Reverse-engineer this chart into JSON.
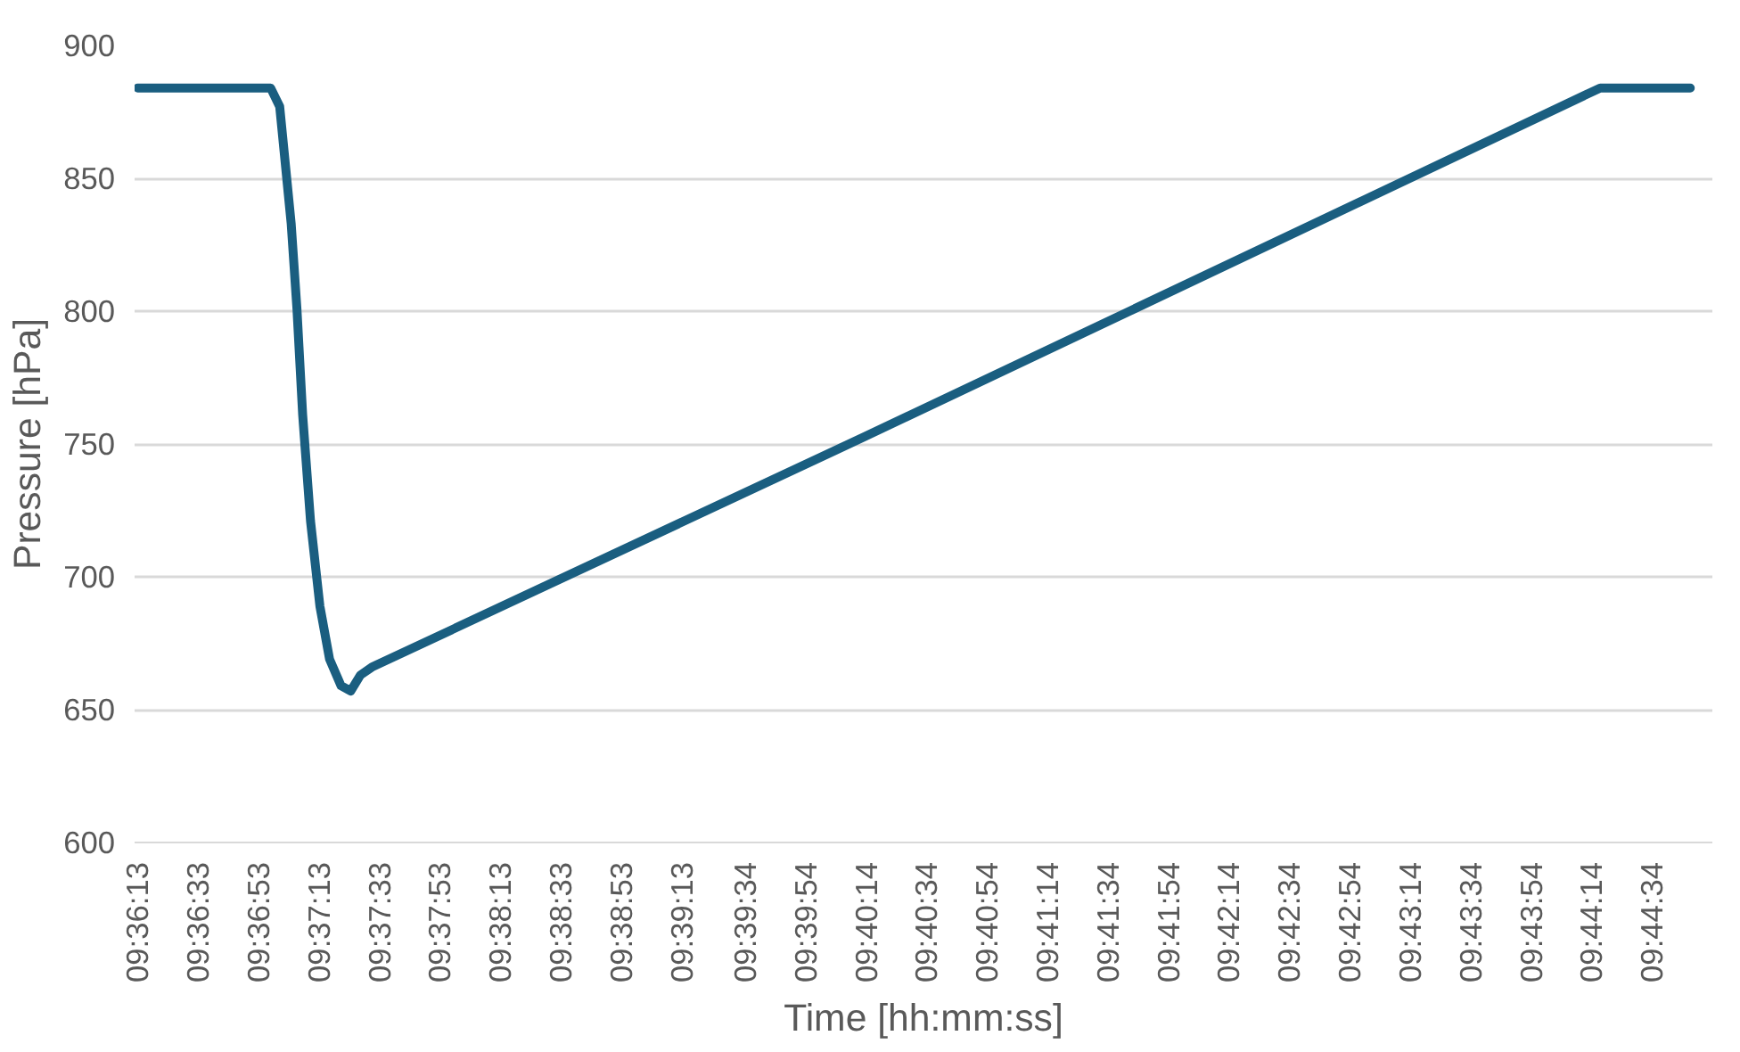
{
  "chart_data": {
    "type": "line",
    "xlabel": "Time [hh:mm:ss]",
    "ylabel": "Pressure [hPa]",
    "x": [
      9.603611,
      9.615833,
      9.616667,
      9.617722,
      9.61825,
      9.618778,
      9.6195,
      9.620361,
      9.62125,
      9.622306,
      9.623194,
      9.624083,
      9.625139,
      9.670556,
      9.738028,
      9.746306
    ],
    "series": [
      {
        "color": "#1a5e80",
        "values": [
          884,
          884,
          877,
          833,
          801,
          761,
          721,
          689,
          669,
          659,
          657,
          663,
          666,
          753,
          884,
          884
        ]
      }
    ],
    "xlim": [
      9.603333,
      9.748333
    ],
    "ylim": [
      600,
      900
    ],
    "yticks": [
      600,
      650,
      700,
      750,
      800,
      850,
      900
    ],
    "xticks": [
      {
        "value": 9.603611,
        "label": "09:36:13"
      },
      {
        "value": 9.609167,
        "label": "09:36:33"
      },
      {
        "value": 9.614722,
        "label": "09:36:53"
      },
      {
        "value": 9.620278,
        "label": "09:37:13"
      },
      {
        "value": 9.625833,
        "label": "09:37:33"
      },
      {
        "value": 9.631389,
        "label": "09:37:53"
      },
      {
        "value": 9.636944,
        "label": "09:38:13"
      },
      {
        "value": 9.6425,
        "label": "09:38:33"
      },
      {
        "value": 9.648056,
        "label": "09:38:53"
      },
      {
        "value": 9.653611,
        "label": "09:39:13"
      },
      {
        "value": 9.659444,
        "label": "09:39:34"
      },
      {
        "value": 9.665,
        "label": "09:39:54"
      },
      {
        "value": 9.670556,
        "label": "09:40:14"
      },
      {
        "value": 9.676111,
        "label": "09:40:34"
      },
      {
        "value": 9.681667,
        "label": "09:40:54"
      },
      {
        "value": 9.687222,
        "label": "09:41:14"
      },
      {
        "value": 9.692778,
        "label": "09:41:34"
      },
      {
        "value": 9.698333,
        "label": "09:41:54"
      },
      {
        "value": 9.703889,
        "label": "09:42:14"
      },
      {
        "value": 9.709444,
        "label": "09:42:34"
      },
      {
        "value": 9.715,
        "label": "09:42:54"
      },
      {
        "value": 9.720556,
        "label": "09:43:14"
      },
      {
        "value": 9.726111,
        "label": "09:43:34"
      },
      {
        "value": 9.731667,
        "label": "09:43:54"
      },
      {
        "value": 9.737222,
        "label": "09:44:14"
      },
      {
        "value": 9.742778,
        "label": "09:44:34"
      }
    ],
    "grid": "y",
    "marker": "none",
    "line_style": "solid"
  }
}
